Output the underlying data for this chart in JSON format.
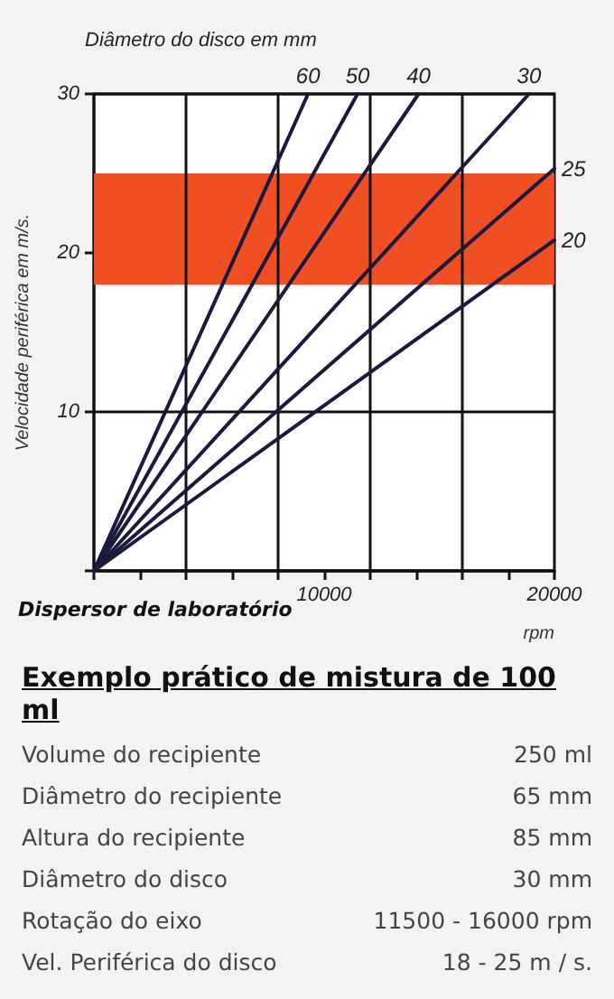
{
  "chart_data": {
    "type": "line",
    "title": "Diâmetro do disco em mm",
    "ylabel": "Velocidade periférica em m/s.",
    "xlabel": "rpm",
    "annotations": [
      "Dispersor de laboratório",
      "Exemplo prático de mistura de 100 ml",
      "Volume do recipiente",
      "250 ml",
      "Diâmetro do recipiente",
      "65 mm",
      "Altura do recipiente",
      "85 mm",
      "Diâmetro do disco",
      "30 mm",
      "Rotação do eixo",
      "11500 - 16000 rpm",
      "Vel. Periférica do disco",
      "18 - 25 m / s."
    ],
    "series": [
      {
        "name": "60",
        "color": "#1c1a3c",
        "x": [
          0,
          9300
        ],
        "values": [
          0,
          30
        ]
      },
      {
        "name": "50",
        "color": "#1c1a3c",
        "x": [
          0,
          11450
        ],
        "values": [
          0,
          30
        ]
      },
      {
        "name": "40",
        "color": "#1c1a3c",
        "x": [
          0,
          14100
        ],
        "values": [
          0,
          30
        ]
      },
      {
        "name": "30",
        "color": "#1c1a3c",
        "x": [
          0,
          18900
        ],
        "values": [
          0,
          30
        ]
      },
      {
        "name": "25",
        "color": "#1c1a3c",
        "x": [
          0,
          20000
        ],
        "values": [
          0,
          25.3
        ]
      },
      {
        "name": "20",
        "color": "#1c1a3c",
        "x": [
          0,
          20000
        ],
        "values": [
          0,
          20.8
        ]
      }
    ],
    "xlim": [
      0,
      20000
    ],
    "ylim": [
      0,
      30
    ],
    "xticks": [
      {
        "value": 0,
        "label": null
      },
      {
        "value": 2000,
        "label": null
      },
      {
        "value": 4000,
        "label": null
      },
      {
        "value": 6000,
        "label": null
      },
      {
        "value": 8000,
        "label": null
      },
      10000,
      {
        "value": 12000,
        "label": null
      },
      {
        "value": 14000,
        "label": null
      },
      {
        "value": 16000,
        "label": null
      },
      {
        "value": 18000,
        "label": null
      },
      20000
    ],
    "yticks": [
      {
        "value": 0,
        "label": null
      },
      10,
      20,
      30
    ],
    "bands": [
      {
        "axis": "y",
        "from": 18,
        "to": 25,
        "color": "#f04e23"
      }
    ],
    "ref_lines": [
      {
        "axis": "x",
        "value": 4000,
        "label": null
      },
      {
        "axis": "x",
        "value": 8000,
        "label": null
      },
      {
        "axis": "x",
        "value": 12000,
        "label": null
      },
      {
        "axis": "x",
        "value": 16000,
        "label": null
      }
    ],
    "grid": "y",
    "legend": false,
    "marker": "none",
    "line_style": "solid"
  }
}
